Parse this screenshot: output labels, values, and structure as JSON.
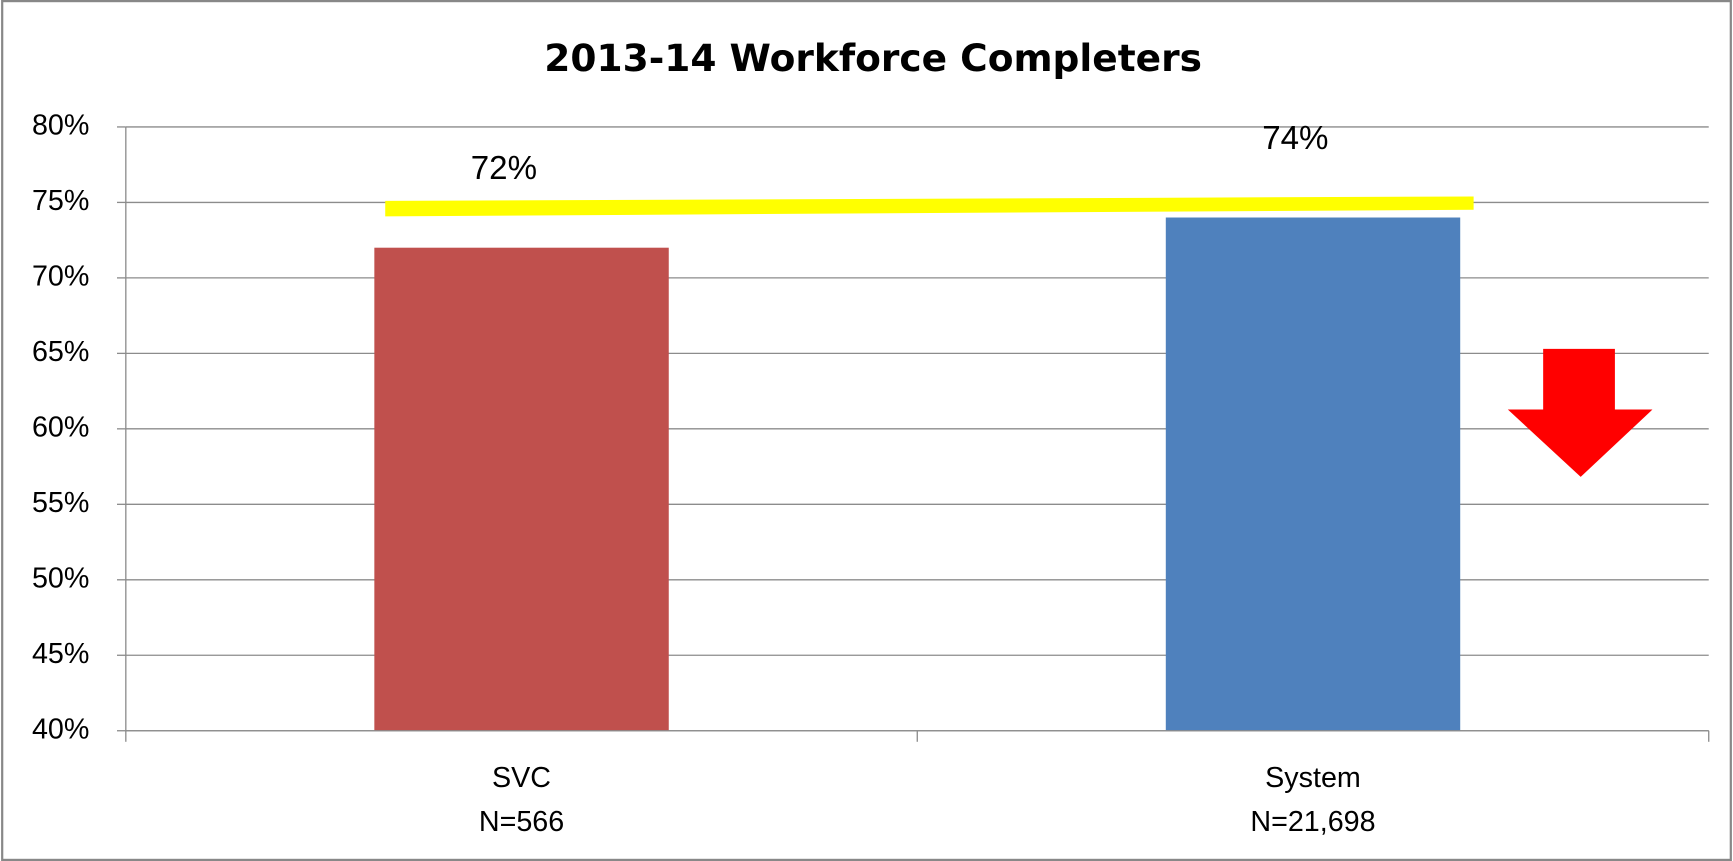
{
  "chart_data": {
    "type": "bar",
    "title": "2013-14 Workforce Completers",
    "categories": [
      [
        "SVC",
        "N=566"
      ],
      [
        "System",
        "N=21,698"
      ]
    ],
    "values": [
      72,
      74
    ],
    "value_labels": [
      "72%",
      "74%"
    ],
    "colors": [
      "#c0504d",
      "#4f81bd"
    ],
    "ylim": [
      40,
      80
    ],
    "yticks": [
      {
        "value": 40,
        "label": "40%"
      },
      {
        "value": 45,
        "label": "45%"
      },
      {
        "value": 50,
        "label": "50%"
      },
      {
        "value": 55,
        "label": "55%"
      },
      {
        "value": 60,
        "label": "60%"
      },
      {
        "value": 65,
        "label": "65%"
      },
      {
        "value": 70,
        "label": "70%"
      },
      {
        "value": 75,
        "label": "75%"
      },
      {
        "value": 80,
        "label": "80%"
      }
    ],
    "grid": true
  }
}
